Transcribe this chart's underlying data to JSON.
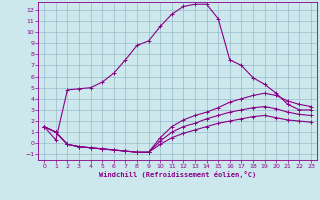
{
  "xlabel": "Windchill (Refroidissement éolien,°C)",
  "bg_color": "#cce8ec",
  "line_color": "#880088",
  "grid_color": "#99bbcc",
  "xlim": [
    -0.5,
    23.5
  ],
  "ylim": [
    -1.5,
    12.7
  ],
  "xticks": [
    0,
    1,
    2,
    3,
    4,
    5,
    6,
    7,
    8,
    9,
    10,
    11,
    12,
    13,
    14,
    15,
    16,
    17,
    18,
    19,
    20,
    21,
    22,
    23
  ],
  "yticks": [
    -1,
    0,
    1,
    2,
    3,
    4,
    5,
    6,
    7,
    8,
    9,
    10,
    11,
    12
  ],
  "series": [
    [
      1.5,
      1.0,
      -0.1,
      -0.3,
      -0.4,
      -0.5,
      -0.6,
      -0.7,
      -0.8,
      -0.8,
      0.5,
      1.5,
      2.1,
      2.5,
      2.8,
      3.2,
      3.7,
      4.0,
      4.3,
      4.5,
      4.3,
      3.8,
      3.5,
      3.3
    ],
    [
      1.5,
      1.0,
      -0.1,
      -0.3,
      -0.4,
      -0.5,
      -0.6,
      -0.7,
      -0.8,
      -0.8,
      0.2,
      1.0,
      1.5,
      1.8,
      2.2,
      2.5,
      2.8,
      3.0,
      3.2,
      3.3,
      3.1,
      2.8,
      2.6,
      2.5
    ],
    [
      1.5,
      1.0,
      -0.1,
      -0.3,
      -0.4,
      -0.5,
      -0.6,
      -0.7,
      -0.8,
      -0.8,
      -0.1,
      0.5,
      0.9,
      1.2,
      1.5,
      1.8,
      2.0,
      2.2,
      2.4,
      2.5,
      2.3,
      2.1,
      2.0,
      1.9
    ],
    [
      1.5,
      0.3,
      4.8,
      4.9,
      5.0,
      5.5,
      6.3,
      7.5,
      8.8,
      9.2,
      10.5,
      11.6,
      12.3,
      12.5,
      12.5,
      11.2,
      7.5,
      7.0,
      5.9,
      5.3,
      4.5,
      3.5,
      3.0,
      3.0
    ]
  ]
}
